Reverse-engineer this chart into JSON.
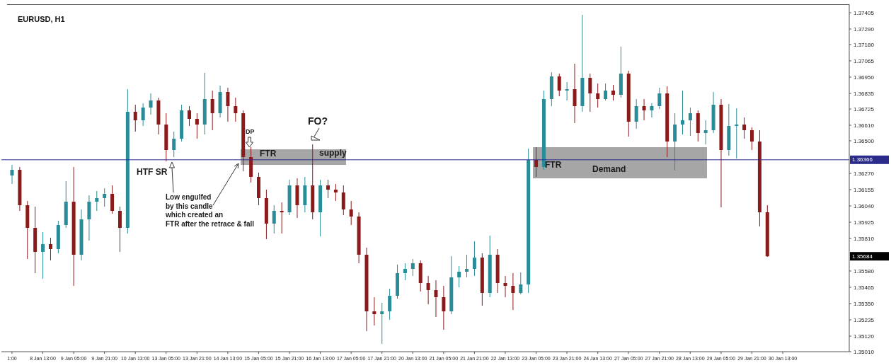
{
  "chart_data": {
    "type": "candlestick",
    "title": "EURUSD, H1",
    "categories": [
      "1:00",
      null,
      null,
      null,
      "8 Jan 13:00",
      null,
      null,
      null,
      "9 Jan 05:00",
      null,
      null,
      null,
      "9 Jan 21:00",
      null,
      null,
      null,
      "10 Jan 13:00",
      null,
      null,
      null,
      "13 Jan 05:00",
      null,
      null,
      null,
      "13 Jan 21:00",
      null,
      null,
      null,
      "14 Jan 13:00",
      null,
      null,
      null,
      "15 Jan 05:00",
      null,
      null,
      null,
      "15 Jan 21:00",
      null,
      null,
      null,
      "16 Jan 13:00",
      null,
      null,
      null,
      "17 Jan 05:00",
      null,
      null,
      null,
      "17 Jan 21:00",
      null,
      null,
      null,
      "20 Jan 13:00",
      null,
      null,
      null,
      "21 Jan 05:00",
      null,
      null,
      null,
      "21 Jan 21:00",
      null,
      null,
      null,
      "22 Jan 13:00",
      null,
      null,
      null,
      "23 Jan 05:00",
      null,
      null,
      null,
      "23 Jan 21:00",
      null,
      null,
      null,
      "24 Jan 13:00",
      null,
      null,
      null,
      "27 Jan 05:00",
      null,
      null,
      null,
      "27 Jan 21:00",
      null,
      null,
      null,
      "28 Jan 13:00",
      null,
      null,
      null,
      "29 Jan 05:00",
      null,
      null,
      null,
      "29 Jan 21:00",
      null,
      null,
      null,
      "30 Jan 13:00",
      null,
      null,
      null,
      null,
      null,
      null,
      null,
      null
    ],
    "ohlc": [
      [
        1.36255,
        1.3633,
        1.36195,
        1.36295
      ],
      [
        1.36295,
        1.36315,
        1.36005,
        1.36045
      ],
      [
        1.36045,
        1.36075,
        1.35665,
        1.35885
      ],
      [
        1.35885,
        1.36035,
        1.35565,
        1.35715
      ],
      [
        1.35715,
        1.35855,
        1.35525,
        1.3577
      ],
      [
        1.3577,
        1.35815,
        1.35655,
        1.35735
      ],
      [
        1.35735,
        1.35935,
        1.35705,
        1.35905
      ],
      [
        1.35905,
        1.36215,
        1.35885,
        1.3607
      ],
      [
        1.3607,
        1.36315,
        1.35475,
        1.35695
      ],
      [
        1.35695,
        1.36015,
        1.35655,
        1.35945
      ],
      [
        1.35945,
        1.36115,
        1.35795,
        1.3607
      ],
      [
        1.3607,
        1.36145,
        1.36005,
        1.36095
      ],
      [
        1.36095,
        1.36165,
        1.36035,
        1.36125
      ],
      [
        1.36125,
        1.36185,
        1.35985,
        1.36005
      ],
      [
        1.36005,
        1.36035,
        1.35715,
        1.35885
      ],
      [
        1.35885,
        1.36865,
        1.35845,
        1.36705
      ],
      [
        1.36705,
        1.36755,
        1.36565,
        1.36645
      ],
      [
        1.36645,
        1.36765,
        1.36605,
        1.36735
      ],
      [
        1.36735,
        1.36835,
        1.36685,
        1.36785
      ],
      [
        1.36785,
        1.36805,
        1.36545,
        1.36615
      ],
      [
        1.36615,
        1.36695,
        1.36355,
        1.36435
      ],
      [
        1.36435,
        1.36565,
        1.36385,
        1.36515
      ],
      [
        1.36515,
        1.36755,
        1.36495,
        1.36715
      ],
      [
        1.36715,
        1.36745,
        1.36605,
        1.36655
      ],
      [
        1.36655,
        1.36695,
        1.36515,
        1.36615
      ],
      [
        1.36615,
        1.3698,
        1.36545,
        1.36795
      ],
      [
        1.36795,
        1.36855,
        1.36575,
        1.36695
      ],
      [
        1.36695,
        1.3689,
        1.36665,
        1.36845
      ],
      [
        1.36845,
        1.36875,
        1.36635,
        1.36745
      ],
      [
        1.36745,
        1.36805,
        1.36635,
        1.36695
      ],
      [
        1.36695,
        1.36715,
        1.36285,
        1.36385
      ],
      [
        1.36385,
        1.36455,
        1.36205,
        1.36245
      ],
      [
        1.36245,
        1.36275,
        1.36045,
        1.36095
      ],
      [
        1.36095,
        1.36155,
        1.35805,
        1.35915
      ],
      [
        1.35915,
        1.36045,
        1.35845,
        1.36005
      ],
      [
        1.36005,
        1.36065,
        1.35845,
        1.35995
      ],
      [
        1.35995,
        1.36225,
        1.35975,
        1.36185
      ],
      [
        1.36185,
        1.36235,
        1.35955,
        1.36045
      ],
      [
        1.36045,
        1.36245,
        1.35995,
        1.36185
      ],
      [
        1.36185,
        1.36475,
        1.35945,
        1.35995
      ],
      [
        1.35995,
        1.36225,
        1.35825,
        1.36185
      ],
      [
        1.36185,
        1.36225,
        1.36095,
        1.36155
      ],
      [
        1.36155,
        1.36195,
        1.36075,
        1.36135
      ],
      [
        1.36135,
        1.36185,
        1.35975,
        1.36015
      ],
      [
        1.36015,
        1.36075,
        1.35905,
        1.35965
      ],
      [
        1.35965,
        1.35995,
        1.35635,
        1.35695
      ],
      [
        1.35695,
        1.35745,
        1.35155,
        1.35295
      ],
      [
        1.35295,
        1.35395,
        1.35195,
        1.35275
      ],
      [
        1.35275,
        1.35355,
        1.35065,
        1.35295
      ],
      [
        1.35295,
        1.35455,
        1.35235,
        1.35405
      ],
      [
        1.35405,
        1.35625,
        1.35385,
        1.35565
      ],
      [
        1.35565,
        1.35635,
        1.35515,
        1.35595
      ],
      [
        1.35595,
        1.35665,
        1.35545,
        1.35635
      ],
      [
        1.35635,
        1.35655,
        1.35435,
        1.35495
      ],
      [
        1.35495,
        1.35545,
        1.35345,
        1.35445
      ],
      [
        1.35445,
        1.35515,
        1.35255,
        1.35395
      ],
      [
        1.35395,
        1.35475,
        1.35165,
        1.35295
      ],
      [
        1.35295,
        1.35685,
        1.35275,
        1.35535
      ],
      [
        1.35535,
        1.35615,
        1.35465,
        1.35575
      ],
      [
        1.35575,
        1.35695,
        1.35535,
        1.35595
      ],
      [
        1.35595,
        1.3579,
        1.35545,
        1.35675
      ],
      [
        1.35675,
        1.35705,
        1.35335,
        1.35425
      ],
      [
        1.35425,
        1.3583,
        1.35395,
        1.35695
      ],
      [
        1.35695,
        1.35735,
        1.35425,
        1.35495
      ],
      [
        1.35495,
        1.35545,
        1.35395,
        1.35475
      ],
      [
        1.35475,
        1.35565,
        1.35305,
        1.35425
      ],
      [
        1.35425,
        1.3557,
        1.35415,
        1.35485
      ],
      [
        1.35485,
        1.36445,
        1.35425,
        1.36365
      ],
      [
        1.36365,
        1.36455,
        1.36245,
        1.36315
      ],
      [
        1.36315,
        1.36855,
        1.36295,
        1.36795
      ],
      [
        1.36795,
        1.36985,
        1.36745,
        1.36955
      ],
      [
        1.36955,
        1.36975,
        1.36815,
        1.36855
      ],
      [
        1.36855,
        1.36915,
        1.36785,
        1.36865
      ],
      [
        1.36865,
        1.37045,
        1.36625,
        1.36745
      ],
      [
        1.36745,
        1.3739,
        1.36705,
        1.36945
      ],
      [
        1.36945,
        1.36975,
        1.36705,
        1.36835
      ],
      [
        1.36835,
        1.36905,
        1.36735,
        1.36795
      ],
      [
        1.36795,
        1.36905,
        1.36785,
        1.36855
      ],
      [
        1.36855,
        1.36895,
        1.36785,
        1.36825
      ],
      [
        1.36825,
        1.37165,
        1.36805,
        1.36975
      ],
      [
        1.36975,
        1.36995,
        1.3653,
        1.36635
      ],
      [
        1.36635,
        1.36795,
        1.36585,
        1.36745
      ],
      [
        1.36745,
        1.36795,
        1.36645,
        1.36715
      ],
      [
        1.36715,
        1.36765,
        1.36665,
        1.36745
      ],
      [
        1.36745,
        1.36875,
        1.36725,
        1.36835
      ],
      [
        1.36835,
        1.36885,
        1.36385,
        1.36495
      ],
      [
        1.36495,
        1.36695,
        1.3629,
        1.36615
      ],
      [
        1.36615,
        1.36855,
        1.36545,
        1.36645
      ],
      [
        1.36645,
        1.36735,
        1.36535,
        1.36695
      ],
      [
        1.36695,
        1.36715,
        1.36495,
        1.36555
      ],
      [
        1.36555,
        1.36645,
        1.36475,
        1.36575
      ],
      [
        1.36575,
        1.36845,
        1.36555,
        1.36755
      ],
      [
        1.36755,
        1.36795,
        1.3603,
        1.36435
      ],
      [
        1.36435,
        1.3676,
        1.36395,
        1.36605
      ],
      [
        1.36605,
        1.3673,
        1.36375,
        1.36615
      ],
      [
        1.36615,
        1.36665,
        1.36515,
        1.36575
      ],
      [
        1.36575,
        1.36595,
        1.36435,
        1.36495
      ],
      [
        1.36495,
        1.36575,
        1.35895,
        1.35995
      ],
      [
        1.35995,
        1.36045,
        1.3568,
        1.35684
      ],
      null,
      null,
      null,
      null,
      null,
      null,
      null,
      null,
      null,
      null
    ],
    "colors": [
      "#2a8c99",
      "#8b1a1a",
      "#8b1a1a",
      "#8b1a1a",
      "#2a8c99",
      "#8b1a1a",
      "#2a8c99",
      "#2a8c99",
      "#8b1a1a",
      "#2a8c99",
      "#2a8c99",
      "#2a8c99",
      "#2a8c99",
      "#8b1a1a",
      "#8b1a1a",
      "#2a8c99",
      "#8b1a1a",
      "#2a8c99",
      "#2a8c99",
      "#8b1a1a",
      "#8b1a1a",
      "#2a8c99",
      "#2a8c99",
      "#8b1a1a",
      "#8b1a1a",
      "#2a8c99",
      "#8b1a1a",
      "#2a8c99",
      "#8b1a1a",
      "#8b1a1a",
      "#8b1a1a",
      "#8b1a1a",
      "#8b1a1a",
      "#8b1a1a",
      "#2a8c99",
      "#8b1a1a",
      "#2a8c99",
      "#8b1a1a",
      "#2a8c99",
      "#8b1a1a",
      "#2a8c99",
      "#8b1a1a",
      "#8b1a1a",
      "#8b1a1a",
      "#8b1a1a",
      "#8b1a1a",
      "#8b1a1a",
      "#8b1a1a",
      "#2a8c99",
      "#2a8c99",
      "#2a8c99",
      "#2a8c99",
      "#2a8c99",
      "#8b1a1a",
      "#8b1a1a",
      "#8b1a1a",
      "#8b1a1a",
      "#2a8c99",
      "#2a8c99",
      "#2a8c99",
      "#2a8c99",
      "#8b1a1a",
      "#2a8c99",
      "#8b1a1a",
      "#8b1a1a",
      "#8b1a1a",
      "#2a8c99",
      "#2a8c99",
      "#8b1a1a",
      "#2a8c99",
      "#2a8c99",
      "#8b1a1a",
      "#2a8c99",
      "#8b1a1a",
      "#2a8c99",
      "#8b1a1a",
      "#8b1a1a",
      "#2a8c99",
      "#8b1a1a",
      "#2a8c99",
      "#8b1a1a",
      "#2a8c99",
      "#8b1a1a",
      "#2a8c99",
      "#2a8c99",
      "#8b1a1a",
      "#2a8c99",
      "#2a8c99",
      "#2a8c99",
      "#8b1a1a",
      "#2a8c99",
      "#2a8c99",
      "#8b1a1a",
      "#2a8c99",
      "#2a8c99",
      "#8b1a1a",
      "#8b1a1a",
      "#8b1a1a",
      "#8b1a1a",
      null,
      null,
      null,
      null,
      null,
      null,
      null,
      null,
      null,
      null
    ],
    "ylim": [
      1.3501,
      1.37465
    ],
    "yticks": [
      1.37405,
      {
        "value": 1.3729,
        "label": "1.37290"
      },
      {
        "value": 1.3718,
        "label": "1.37180"
      },
      1.37065,
      {
        "value": 1.3695,
        "label": "1.36950"
      },
      1.36835,
      1.36725,
      {
        "value": 1.3661,
        "label": "1.36610"
      },
      {
        "value": 1.365,
        "label": "1.36500"
      },
      {
        "value": 1.3627,
        "label": "1.36270"
      },
      1.36155,
      {
        "value": 1.3604,
        "label": "1.36040"
      },
      1.35925,
      {
        "value": 1.3581,
        "label": "1.35810"
      },
      {
        "value": 1.3558,
        "label": "1.35580"
      },
      1.35465,
      {
        "value": 1.3535,
        "label": "1.35350"
      },
      1.35235,
      {
        "value": 1.3512,
        "label": "1.35120"
      },
      {
        "value": 1.3501,
        "label": "1.35010"
      }
    ],
    "ref_lines": [
      {
        "axis": "y",
        "value": 1.36366,
        "label": "1.36366",
        "color": "#2b2b8c"
      }
    ],
    "annotations": [
      "HTF SR",
      "Low engulfed\nby this candle\nwhich created an\nFTR after the retrace & fall",
      "DP",
      "FO?",
      "FTR",
      "supply",
      "FTR",
      "Demand",
      "1.35684"
    ]
  }
}
